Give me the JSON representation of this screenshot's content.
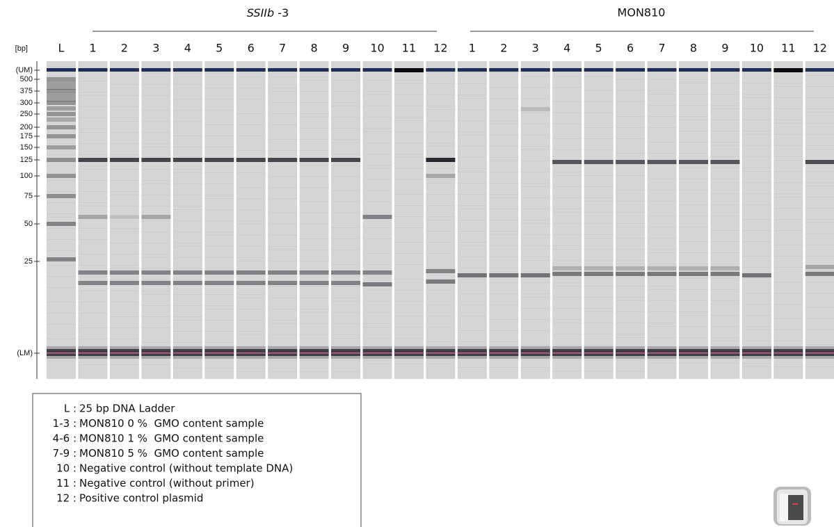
{
  "header": {
    "groups": [
      {
        "gene": "SSIIb",
        "suffix": "-3"
      },
      {
        "gene": "MON810"
      }
    ]
  },
  "y_axis": {
    "unit": "[bp]",
    "labels": [
      "(UM)",
      "500",
      "375",
      "300",
      "250",
      "200",
      "175",
      "150",
      "125",
      "100",
      "75",
      "50",
      "25",
      "(LM)"
    ]
  },
  "lanes": {
    "ladder": "L",
    "groups": [
      [
        "1",
        "2",
        "3",
        "4",
        "5",
        "6",
        "7",
        "8",
        "9",
        "10",
        "11",
        "12"
      ],
      [
        "1",
        "2",
        "3",
        "4",
        "5",
        "6",
        "7",
        "8",
        "9",
        "10",
        "11",
        "12"
      ]
    ]
  },
  "legend": [
    {
      "key": "L :",
      "text": "25 bp DNA Ladder"
    },
    {
      "key": "1-3 :",
      "text": "MON810 0 %  GMO content sample"
    },
    {
      "key": "4-6 :",
      "text": "MON810 1 %  GMO content sample"
    },
    {
      "key": "7-9 :",
      "text": "MON810 5 %  GMO content sample"
    },
    {
      "key": "10 :",
      "text": "Negative control (without template DNA)"
    },
    {
      "key": "11 :",
      "text": "Negative control (without primer)"
    },
    {
      "key": "12 :",
      "text": "Positive control plasmid"
    }
  ]
}
